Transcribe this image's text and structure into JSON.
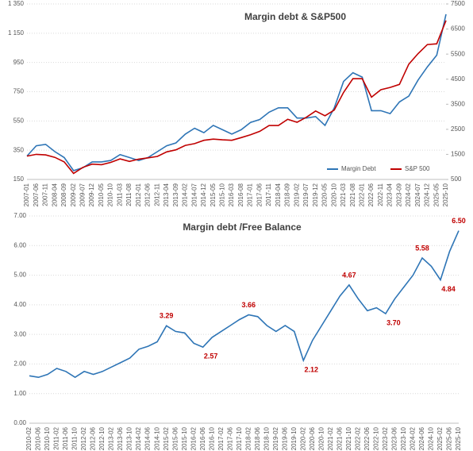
{
  "chart_data": [
    {
      "type": "line",
      "title": "Margin debt & S&P500",
      "categories": [
        "2007-01",
        "2007-06",
        "2007-11",
        "2008-04",
        "2008-09",
        "2009-02",
        "2009-07",
        "2009-12",
        "2010-05",
        "2010-10",
        "2011-03",
        "2011-08",
        "2012-01",
        "2012-06",
        "2012-11",
        "2013-04",
        "2013-09",
        "2014-02",
        "2014-07",
        "2014-12",
        "2015-05",
        "2015-10",
        "2016-03",
        "2016-08",
        "2017-01",
        "2017-06",
        "2017-11",
        "2018-04",
        "2018-09",
        "2019-02",
        "2019-07",
        "2019-12",
        "2020-05",
        "2020-10",
        "2021-03",
        "2021-08",
        "2022-01",
        "2022-06",
        "2022-11",
        "2023-04",
        "2023-09",
        "2024-02",
        "2024-07",
        "2024-12",
        "2025-05",
        "2025-10"
      ],
      "series": [
        {
          "name": "Margin Debt",
          "color": "#2e75b6",
          "values": [
            310,
            380,
            390,
            340,
            300,
            210,
            230,
            270,
            270,
            280,
            320,
            300,
            280,
            300,
            340,
            380,
            400,
            460,
            500,
            470,
            520,
            490,
            460,
            490,
            540,
            560,
            610,
            640,
            640,
            570,
            570,
            580,
            520,
            640,
            820,
            880,
            850,
            620,
            620,
            600,
            680,
            720,
            830,
            920,
            1000,
            1280
          ]
        },
        {
          "name": "S&P 500",
          "color": "#c00000",
          "axis": "y2",
          "values": [
            1430,
            1500,
            1480,
            1380,
            1200,
            740,
            980,
            1110,
            1090,
            1180,
            1320,
            1220,
            1310,
            1360,
            1420,
            1600,
            1680,
            1860,
            1930,
            2060,
            2110,
            2080,
            2060,
            2170,
            2280,
            2420,
            2650,
            2650,
            2900,
            2780,
            2980,
            3230,
            3040,
            3270,
            3970,
            4520,
            4520,
            3780,
            4080,
            4170,
            4290,
            5100,
            5520,
            5880,
            5910,
            6840
          ]
        }
      ],
      "ylim": [
        150,
        1350
      ],
      "yticks": [
        150,
        350,
        550,
        750,
        950,
        {
          "value": 1150,
          "label": "1 150"
        },
        {
          "value": 1350,
          "label": "1 350"
        }
      ],
      "y2lim": [
        500,
        7500
      ],
      "y2ticks": [
        500,
        1500,
        2500,
        3500,
        4500,
        5500,
        6500,
        7500
      ],
      "grid": true,
      "legend": "lower right"
    },
    {
      "type": "line",
      "title": "Margin debt /Free Balance",
      "categories": [
        "2010-02",
        "2010-06",
        "2010-10",
        "2011-02",
        "2011-06",
        "2011-10",
        "2012-02",
        "2012-06",
        "2012-10",
        "2013-02",
        "2013-06",
        "2013-10",
        "2014-02",
        "2014-06",
        "2014-10",
        "2015-02",
        "2015-06",
        "2015-10",
        "2016-02",
        "2016-06",
        "2016-10",
        "2017-02",
        "2017-06",
        "2017-10",
        "2018-02",
        "2018-06",
        "2018-10",
        "2019-02",
        "2019-06",
        "2019-10",
        "2020-02",
        "2020-06",
        "2020-10",
        "2021-02",
        "2021-06",
        "2021-10",
        "2022-02",
        "2022-06",
        "2022-10",
        "2023-02",
        "2023-06",
        "2023-10",
        "2024-02",
        "2024-06",
        "2024-10",
        "2025-02",
        "2025-06",
        "2025-10"
      ],
      "values": [
        1.6,
        1.55,
        1.65,
        1.85,
        1.75,
        1.55,
        1.75,
        1.65,
        1.75,
        1.9,
        2.05,
        2.2,
        2.5,
        2.6,
        2.75,
        3.29,
        3.1,
        3.05,
        2.7,
        2.57,
        2.9,
        3.1,
        3.3,
        3.5,
        3.66,
        3.6,
        3.3,
        3.1,
        3.3,
        3.1,
        2.12,
        2.8,
        3.3,
        3.8,
        4.3,
        4.67,
        4.2,
        3.8,
        3.9,
        3.7,
        4.2,
        4.6,
        5.0,
        5.58,
        5.3,
        4.84,
        5.8,
        6.5
      ],
      "value_labels": [
        null,
        null,
        null,
        null,
        null,
        null,
        null,
        null,
        null,
        null,
        null,
        null,
        null,
        null,
        null,
        "3.29",
        null,
        null,
        null,
        "2.57",
        null,
        null,
        null,
        null,
        "3.66",
        null,
        null,
        null,
        null,
        null,
        "2.12",
        null,
        null,
        null,
        null,
        "4.67",
        null,
        null,
        null,
        "3.70",
        null,
        null,
        null,
        "5.58",
        null,
        "4.84",
        null,
        "6.50"
      ],
      "color": "#2e75b6",
      "label_color": "#c00000",
      "ylim": [
        0,
        7
      ],
      "yticks": [
        {
          "value": 0,
          "label": "0.00"
        },
        {
          "value": 1,
          "label": "1.00"
        },
        {
          "value": 2,
          "label": "2.00"
        },
        {
          "value": 3,
          "label": "3.00"
        },
        {
          "value": 4,
          "label": "4.00"
        },
        {
          "value": 5,
          "label": "5.00"
        },
        {
          "value": 6,
          "label": "6.00"
        },
        {
          "value": 7,
          "label": "7.00"
        }
      ],
      "grid": true
    }
  ]
}
